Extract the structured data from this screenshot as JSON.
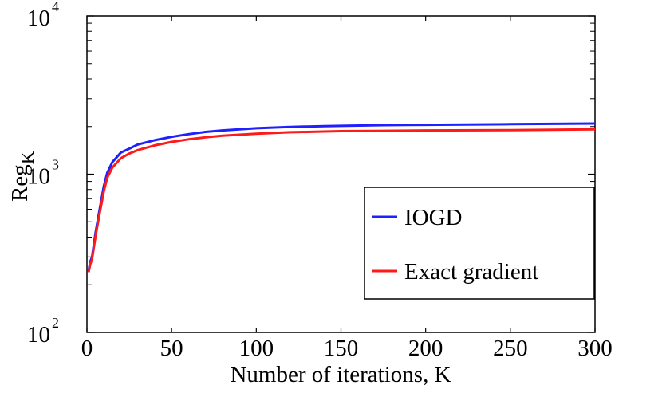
{
  "chart_data": {
    "type": "line",
    "title": "",
    "xlabel": "Number of iterations, K",
    "ylabel": {
      "base": "Reg",
      "subscript": "K"
    },
    "xlim": [
      0,
      300
    ],
    "ylim": [
      100,
      10000
    ],
    "yscale": "log",
    "grid": false,
    "legend_position": "lower-right",
    "x_ticks": [
      0,
      50,
      100,
      150,
      200,
      250,
      300
    ],
    "x_tick_labels": [
      "0",
      "50",
      "100",
      "150",
      "200",
      "250",
      "300"
    ],
    "y_ticks": [
      {
        "value": 100,
        "base": "10",
        "exponent": "2"
      },
      {
        "value": 1000,
        "base": "10",
        "exponent": "3"
      },
      {
        "value": 10000,
        "base": "10",
        "exponent": "4"
      }
    ],
    "series": [
      {
        "name": "IOGD",
        "color": "#1f1fff",
        "x": [
          1,
          2,
          3,
          5,
          7,
          10,
          12,
          15,
          20,
          25,
          30,
          40,
          50,
          60,
          70,
          80,
          100,
          120,
          130,
          140,
          150,
          175,
          200,
          250,
          300
        ],
        "y": [
          245,
          280,
          300,
          420,
          560,
          840,
          1020,
          1190,
          1370,
          1450,
          1540,
          1640,
          1720,
          1790,
          1850,
          1890,
          1950,
          1990,
          2000,
          2010,
          2020,
          2040,
          2050,
          2070,
          2090
        ]
      },
      {
        "name": "Exact gradient",
        "color": "#ff1a1a",
        "x": [
          1,
          2,
          3,
          5,
          7,
          10,
          12,
          15,
          20,
          25,
          30,
          40,
          50,
          60,
          70,
          80,
          100,
          120,
          130,
          140,
          150,
          175,
          200,
          250,
          300
        ],
        "y": [
          240,
          270,
          290,
          400,
          530,
          780,
          950,
          1100,
          1260,
          1350,
          1420,
          1520,
          1600,
          1660,
          1710,
          1750,
          1800,
          1840,
          1850,
          1860,
          1870,
          1880,
          1890,
          1900,
          1920
        ]
      }
    ]
  }
}
